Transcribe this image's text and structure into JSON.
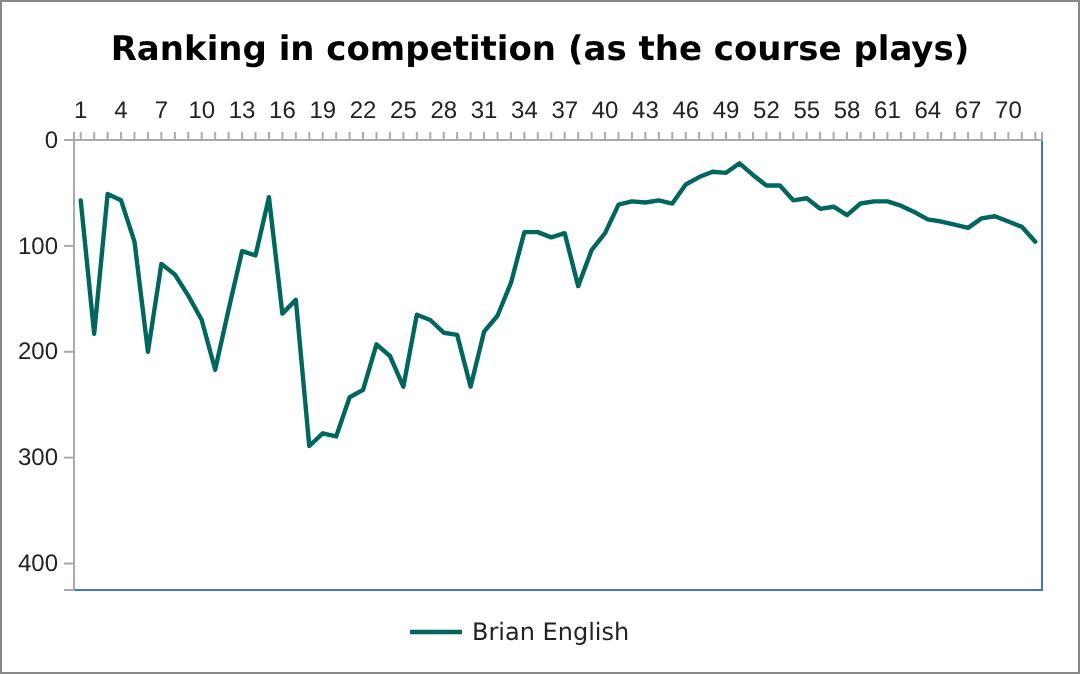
{
  "chart_data": {
    "type": "line",
    "title": "Ranking in competition (as the course plays)",
    "categories": [
      "1",
      null,
      null,
      "4",
      null,
      null,
      "7",
      null,
      null,
      "10",
      null,
      null,
      "13",
      null,
      null,
      "16",
      null,
      null,
      "19",
      null,
      null,
      "22",
      null,
      null,
      "25",
      null,
      null,
      "28",
      null,
      null,
      "31",
      null,
      null,
      "34",
      null,
      null,
      "37",
      null,
      null,
      "40",
      null,
      null,
      "43",
      null,
      null,
      "46",
      null,
      null,
      "49",
      null,
      null,
      "52",
      null,
      null,
      "55",
      null,
      null,
      "58",
      null,
      null,
      "61",
      null,
      null,
      "64",
      null,
      null,
      "67",
      null,
      null,
      "70",
      null,
      null
    ],
    "series": [
      {
        "name": "Brian English",
        "color": "#00665e",
        "values": [
          57,
          183,
          51,
          57,
          96,
          200,
          117,
          127,
          147,
          170,
          217,
          160,
          105,
          109,
          54,
          164,
          151,
          289,
          277,
          280,
          243,
          236,
          193,
          204,
          233,
          165,
          170,
          182,
          184,
          233,
          181,
          166,
          135,
          87,
          87,
          92,
          88,
          138,
          104,
          88,
          61,
          58,
          59,
          57,
          60,
          42,
          35,
          30,
          31,
          22,
          33,
          43,
          43,
          57,
          55,
          65,
          63,
          71,
          60,
          58,
          58,
          62,
          68,
          75,
          77,
          80,
          83,
          74,
          72,
          77,
          82,
          96
        ]
      }
    ],
    "ylim": [
      425,
      0
    ],
    "yticks": [
      0,
      100,
      200,
      300,
      400
    ],
    "grid": false,
    "legend": "bottom",
    "marker": "none",
    "line_style": "solid"
  }
}
